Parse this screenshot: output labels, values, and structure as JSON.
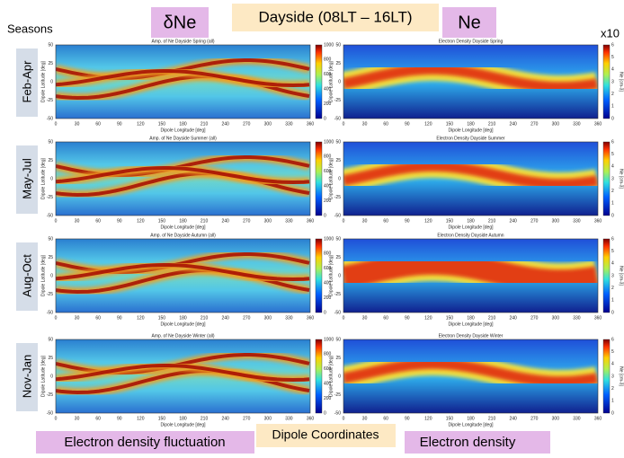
{
  "header": {
    "seasons_label": "Seasons",
    "left_label": "δNe",
    "title": "Dayside (08LT – 16LT)",
    "right_label": "Ne",
    "exponent": "x10"
  },
  "rows": [
    {
      "season": "Feb-Apr",
      "left_title": "Amp. of Ne  Dayside Spring (all)",
      "right_title": "Electron Density Dayside Spring"
    },
    {
      "season": "May-Jul",
      "left_title": "Amp. of Ne  Dayside Summer (all)",
      "right_title": "Electron Density Dayside Summer"
    },
    {
      "season": "Aug-Oct",
      "left_title": "Amp. of Ne  Dayside Autumn (all)",
      "right_title": "Electron Density Dayside Autumn"
    },
    {
      "season": "Nov-Jan",
      "left_title": "Amp. of Ne  Dayside Winter (all)",
      "right_title": "Electron Density Dayside Winter"
    }
  ],
  "axes": {
    "xticks": [
      0,
      30,
      60,
      90,
      120,
      150,
      180,
      210,
      240,
      270,
      300,
      330,
      360
    ],
    "yticks": [
      50,
      25,
      0,
      -25,
      -50
    ],
    "xlabel": "Dipole Longitude [deg]",
    "ylabel": "Dipole Latitude [deg]",
    "left_cbar_ticks": [
      1000,
      800,
      600,
      400,
      200,
      0
    ],
    "right_cbar_ticks": [
      6,
      5,
      4,
      3,
      2,
      1,
      0
    ],
    "right_cbar_label": "Ne [cm-3]"
  },
  "footer": {
    "left": "Electron density fluctuation",
    "center": "Dipole Coordinates",
    "right": "Electron density"
  }
}
